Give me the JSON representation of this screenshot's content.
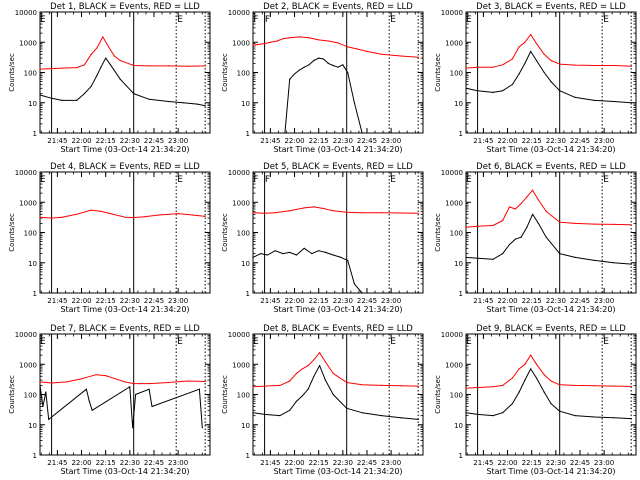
{
  "figure": {
    "title_template": "BLACK = Events, RED = LLD",
    "ylabel": "Counts/sec",
    "xlabel": "Start Time (03-Oct-14 21:34:20)",
    "x_ticks": [
      "21:45",
      "22:00",
      "22:15",
      "22:30",
      "22:45",
      "23:00"
    ],
    "y_ticks": [
      "1",
      "10",
      "100",
      "1000",
      "10000"
    ],
    "colors": {
      "events": "#000000",
      "lld": "#ff0000",
      "axes": "#000000"
    }
  },
  "chart_data": [
    {
      "type": "line",
      "panel": 1,
      "title": "Det 1, BLACK = Events, RED = LLD",
      "ylim": [
        1,
        10000
      ],
      "yscale": "log",
      "xlim": [
        21.57,
        23.33
      ],
      "markers": {
        "solid": [
          21.69,
          22.54
        ],
        "dotted": [
          22.98,
          23.28
        ],
        "letters": [
          {
            "text": "E",
            "x": 21.6
          },
          {
            "text": "E",
            "x": 23.02
          }
        ]
      },
      "series": [
        {
          "name": "Events",
          "color": "#000000",
          "x": [
            21.57,
            21.69,
            21.8,
            21.95,
            22.03,
            22.1,
            22.16,
            22.2,
            22.25,
            22.3,
            22.4,
            22.54,
            22.7,
            22.9,
            23.05,
            23.2,
            23.28
          ],
          "values": [
            18,
            14,
            12,
            12,
            20,
            35,
            80,
            150,
            300,
            180,
            60,
            20,
            13,
            11,
            10,
            9,
            8
          ]
        },
        {
          "name": "LLD",
          "color": "#ff0000",
          "x": [
            21.57,
            21.69,
            21.8,
            21.95,
            22.03,
            22.1,
            22.16,
            22.22,
            22.28,
            22.34,
            22.4,
            22.54,
            22.7,
            22.9,
            23.1,
            23.28
          ],
          "values": [
            130,
            135,
            140,
            145,
            180,
            400,
            650,
            1500,
            700,
            350,
            250,
            170,
            165,
            165,
            160,
            165
          ]
        }
      ]
    },
    {
      "type": "line",
      "panel": 2,
      "title": "Det 2, BLACK = Events, RED = LLD",
      "ylim": [
        1,
        10000
      ],
      "yscale": "log",
      "xlim": [
        21.57,
        23.33
      ],
      "markers": {
        "solid": [
          21.69,
          22.54
        ],
        "dotted": [
          22.98,
          23.28
        ],
        "letters": [
          {
            "text": "F",
            "x": 21.6
          },
          {
            "text": "F",
            "x": 21.72
          },
          {
            "text": "E",
            "x": 23.02
          }
        ]
      },
      "series": [
        {
          "name": "Events",
          "color": "#000000",
          "x": [
            21.9,
            21.95,
            22.0,
            22.05,
            22.1,
            22.15,
            22.2,
            22.25,
            22.3,
            22.35,
            22.4,
            22.45,
            22.5,
            22.55,
            22.62,
            22.7
          ],
          "values": [
            1,
            60,
            90,
            120,
            150,
            180,
            250,
            300,
            280,
            200,
            170,
            150,
            180,
            100,
            10,
            1
          ]
        },
        {
          "name": "LLD",
          "color": "#ff0000",
          "x": [
            21.57,
            21.69,
            21.75,
            21.82,
            21.88,
            21.95,
            22.05,
            22.15,
            22.25,
            22.35,
            22.45,
            22.55,
            22.65,
            22.75,
            22.9,
            23.1,
            23.28
          ],
          "values": [
            800,
            900,
            1000,
            1100,
            1300,
            1400,
            1500,
            1400,
            1200,
            1100,
            950,
            700,
            600,
            500,
            400,
            350,
            320
          ]
        }
      ]
    },
    {
      "type": "line",
      "panel": 3,
      "title": "Det 3, BLACK = Events, RED = LLD",
      "ylim": [
        1,
        10000
      ],
      "yscale": "log",
      "xlim": [
        21.57,
        23.33
      ],
      "markers": {
        "solid": [
          21.69,
          22.54
        ],
        "dotted": [
          22.98,
          23.28
        ],
        "letters": [
          {
            "text": "E",
            "x": 21.6
          },
          {
            "text": "E",
            "x": 23.02
          }
        ]
      },
      "series": [
        {
          "name": "Events",
          "color": "#000000",
          "x": [
            21.57,
            21.69,
            21.85,
            21.95,
            22.05,
            22.12,
            22.18,
            22.24,
            22.3,
            22.38,
            22.45,
            22.54,
            22.7,
            22.9,
            23.1,
            23.28
          ],
          "values": [
            30,
            25,
            22,
            25,
            40,
            90,
            200,
            500,
            250,
            100,
            50,
            25,
            15,
            12,
            11,
            10
          ]
        },
        {
          "name": "LLD",
          "color": "#ff0000",
          "x": [
            21.57,
            21.69,
            21.85,
            21.95,
            22.05,
            22.12,
            22.18,
            22.24,
            22.3,
            22.38,
            22.45,
            22.54,
            22.7,
            22.9,
            23.1,
            23.28
          ],
          "values": [
            140,
            150,
            150,
            180,
            280,
            700,
            1000,
            1800,
            900,
            400,
            250,
            190,
            175,
            170,
            170,
            160
          ]
        }
      ]
    },
    {
      "type": "line",
      "panel": 4,
      "title": "Det 4, BLACK = Events, RED = LLD",
      "ylim": [
        1,
        10000
      ],
      "yscale": "log",
      "xlim": [
        21.57,
        23.33
      ],
      "markers": {
        "solid": [
          21.69,
          22.54
        ],
        "dotted": [
          22.98,
          23.28
        ],
        "letters": [
          {
            "text": "E",
            "x": 21.6
          },
          {
            "text": "E",
            "x": 23.02
          }
        ]
      },
      "series": [
        {
          "name": "LLD",
          "color": "#ff0000",
          "x": [
            21.57,
            21.69,
            21.8,
            21.95,
            22.1,
            22.2,
            22.3,
            22.45,
            22.54,
            22.65,
            22.8,
            23.0,
            23.15,
            23.28
          ],
          "values": [
            320,
            300,
            320,
            400,
            550,
            500,
            420,
            320,
            310,
            330,
            380,
            420,
            380,
            340
          ]
        }
      ]
    },
    {
      "type": "line",
      "panel": 5,
      "title": "Det 5, BLACK = Events, RED = LLD",
      "ylim": [
        1,
        10000
      ],
      "yscale": "log",
      "xlim": [
        21.57,
        23.33
      ],
      "markers": {
        "solid": [
          21.69,
          22.54
        ],
        "dotted": [
          22.98,
          23.28
        ],
        "letters": [
          {
            "text": "F",
            "x": 21.6
          },
          {
            "text": "F",
            "x": 21.72
          },
          {
            "text": "E",
            "x": 23.02
          }
        ]
      },
      "series": [
        {
          "name": "Events",
          "color": "#000000",
          "x": [
            21.57,
            21.65,
            21.72,
            21.8,
            21.88,
            21.95,
            22.02,
            22.1,
            22.18,
            22.25,
            22.32,
            22.4,
            22.48,
            22.55,
            22.62,
            22.7
          ],
          "values": [
            15,
            20,
            18,
            25,
            20,
            22,
            18,
            30,
            20,
            25,
            22,
            18,
            15,
            12,
            2,
            1
          ]
        },
        {
          "name": "LLD",
          "color": "#ff0000",
          "x": [
            21.57,
            21.69,
            21.8,
            21.95,
            22.1,
            22.2,
            22.3,
            22.4,
            22.54,
            22.7,
            22.9,
            23.1,
            23.28
          ],
          "values": [
            450,
            430,
            450,
            520,
            650,
            700,
            620,
            520,
            470,
            450,
            450,
            440,
            430
          ]
        }
      ]
    },
    {
      "type": "line",
      "panel": 6,
      "title": "Det 6, BLACK = Events, RED = LLD",
      "ylim": [
        1,
        10000
      ],
      "yscale": "log",
      "xlim": [
        21.57,
        23.33
      ],
      "markers": {
        "solid": [
          21.69,
          22.54
        ],
        "dotted": [
          22.98,
          23.28
        ],
        "letters": [
          {
            "text": "E",
            "x": 21.6
          },
          {
            "text": "E",
            "x": 23.02
          }
        ]
      },
      "series": [
        {
          "name": "Events",
          "color": "#000000",
          "x": [
            21.57,
            21.69,
            21.85,
            21.95,
            22.02,
            22.08,
            22.14,
            22.2,
            22.26,
            22.32,
            22.4,
            22.54,
            22.7,
            22.9,
            23.1,
            23.28
          ],
          "values": [
            15,
            14,
            13,
            20,
            40,
            60,
            70,
            150,
            400,
            200,
            70,
            20,
            15,
            12,
            10,
            9
          ]
        },
        {
          "name": "LLD",
          "color": "#ff0000",
          "x": [
            21.57,
            21.69,
            21.85,
            21.95,
            22.02,
            22.08,
            22.14,
            22.2,
            22.26,
            22.32,
            22.4,
            22.54,
            22.7,
            22.9,
            23.1,
            23.28
          ],
          "values": [
            150,
            160,
            170,
            250,
            700,
            600,
            900,
            1500,
            2500,
            1200,
            500,
            220,
            200,
            190,
            185,
            180
          ]
        }
      ]
    },
    {
      "type": "line",
      "panel": 7,
      "title": "Det 7, BLACK = Events, RED = LLD",
      "ylim": [
        1,
        10000
      ],
      "yscale": "log",
      "xlim": [
        21.57,
        23.33
      ],
      "markers": {
        "solid": [
          21.69,
          22.54
        ],
        "dotted": [
          22.98,
          23.28
        ],
        "letters": [
          {
            "text": "E",
            "x": 21.6
          },
          {
            "text": "E",
            "x": 23.02
          }
        ]
      },
      "series": [
        {
          "name": "Events",
          "color": "#000000",
          "x": [
            21.57,
            21.6,
            21.63,
            21.66,
            22.05,
            22.08,
            22.11,
            22.5,
            22.53,
            22.56,
            22.7,
            22.73,
            23.22,
            23.25
          ],
          "values": [
            200,
            40,
            120,
            15,
            150,
            60,
            30,
            180,
            8,
            100,
            150,
            40,
            150,
            8
          ]
        },
        {
          "name": "LLD",
          "color": "#ff0000",
          "x": [
            21.57,
            21.69,
            21.85,
            22.0,
            22.15,
            22.25,
            22.35,
            22.45,
            22.54,
            22.7,
            22.9,
            23.1,
            23.28
          ],
          "values": [
            260,
            240,
            260,
            330,
            450,
            420,
            330,
            260,
            230,
            230,
            250,
            280,
            270
          ]
        }
      ]
    },
    {
      "type": "line",
      "panel": 8,
      "title": "Det 8, BLACK = Events, RED = LLD",
      "ylim": [
        1,
        10000
      ],
      "yscale": "log",
      "xlim": [
        21.57,
        23.33
      ],
      "markers": {
        "solid": [
          21.69,
          22.54
        ],
        "dotted": [
          22.98,
          23.28
        ],
        "letters": [
          {
            "text": "E",
            "x": 21.6
          },
          {
            "text": "E",
            "x": 23.02
          }
        ]
      },
      "series": [
        {
          "name": "Events",
          "color": "#000000",
          "x": [
            21.57,
            21.69,
            21.85,
            21.95,
            22.02,
            22.08,
            22.14,
            22.2,
            22.26,
            22.32,
            22.4,
            22.54,
            22.7,
            22.9,
            23.1,
            23.28
          ],
          "values": [
            25,
            22,
            20,
            30,
            60,
            90,
            150,
            400,
            900,
            300,
            100,
            35,
            25,
            20,
            17,
            15
          ]
        },
        {
          "name": "LLD",
          "color": "#ff0000",
          "x": [
            21.57,
            21.69,
            21.85,
            21.95,
            22.02,
            22.08,
            22.14,
            22.2,
            22.26,
            22.32,
            22.4,
            22.54,
            22.7,
            22.9,
            23.1,
            23.28
          ],
          "values": [
            180,
            190,
            200,
            280,
            500,
            700,
            900,
            1400,
            2400,
            1200,
            500,
            250,
            210,
            200,
            195,
            190
          ]
        }
      ]
    },
    {
      "type": "line",
      "panel": 9,
      "title": "Det 9, BLACK = Events, RED = LLD",
      "ylim": [
        1,
        10000
      ],
      "yscale": "log",
      "xlim": [
        21.57,
        23.33
      ],
      "markers": {
        "solid": [
          21.69,
          22.54
        ],
        "dotted": [
          22.98,
          23.28
        ],
        "letters": [
          {
            "text": "E",
            "x": 21.6
          },
          {
            "text": "E",
            "x": 23.02
          }
        ]
      },
      "series": [
        {
          "name": "Events",
          "color": "#000000",
          "x": [
            21.57,
            21.69,
            21.85,
            21.95,
            22.05,
            22.12,
            22.18,
            22.24,
            22.3,
            22.38,
            22.45,
            22.54,
            22.7,
            22.9,
            23.1,
            23.28
          ],
          "values": [
            25,
            22,
            20,
            25,
            50,
            120,
            300,
            700,
            350,
            120,
            50,
            28,
            20,
            18,
            17,
            16
          ]
        },
        {
          "name": "LLD",
          "color": "#ff0000",
          "x": [
            21.57,
            21.69,
            21.85,
            21.95,
            22.05,
            22.12,
            22.18,
            22.24,
            22.3,
            22.38,
            22.45,
            22.54,
            22.7,
            22.9,
            23.1,
            23.28
          ],
          "values": [
            160,
            170,
            180,
            200,
            350,
            700,
            1000,
            2000,
            1000,
            450,
            280,
            210,
            200,
            195,
            190,
            185
          ]
        }
      ]
    }
  ]
}
